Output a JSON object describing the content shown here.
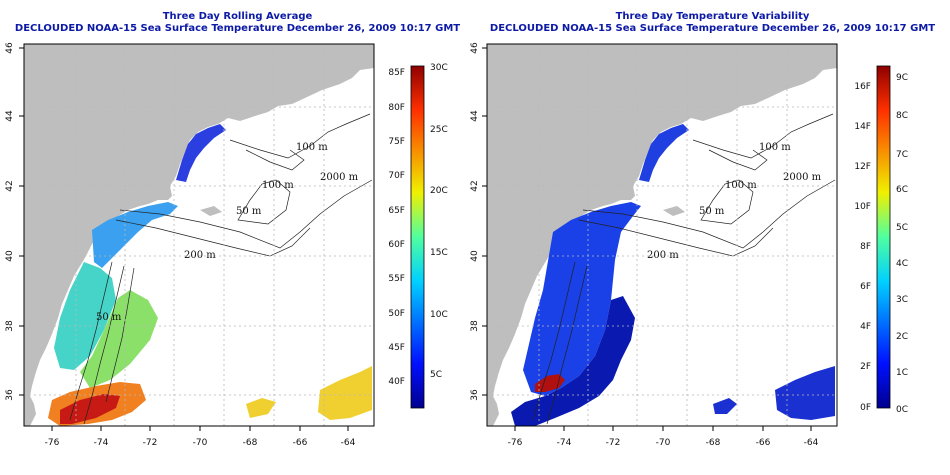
{
  "panels": [
    {
      "title": "Three Day Rolling Average",
      "subtitle": "DECLOUDED NOAA-15 Sea Surface Temperature December 26, 2009 10:17 GMT",
      "x_ticks": [
        "-76",
        "-74",
        "-72",
        "-70",
        "-68",
        "-66",
        "-64"
      ],
      "y_ticks": [
        "36",
        "38",
        "40",
        "42",
        "44",
        "46"
      ],
      "colorbar_left": [
        "85F",
        "80F",
        "75F",
        "70F",
        "65F",
        "60F",
        "55F",
        "50F",
        "45F",
        "40F"
      ],
      "colorbar_right": [
        "30C",
        "25C",
        "20C",
        "15C",
        "10C",
        "5C"
      ],
      "contour_labels": [
        "100 m",
        "100 m",
        "2000 m",
        "50 m",
        "200 m",
        "50 m"
      ]
    },
    {
      "title": "Three Day Temperature Variability",
      "subtitle": "DECLOUDED NOAA-15 Sea Surface Temperature December 26, 2009 10:17 GMT",
      "x_ticks": [
        "-76",
        "-74",
        "-72",
        "-70",
        "-68",
        "-66",
        "-64"
      ],
      "y_ticks": [
        "36",
        "38",
        "40",
        "42",
        "44",
        "46"
      ],
      "colorbar_left": [
        "16F",
        "14F",
        "12F",
        "10F",
        "8F",
        "6F",
        "4F",
        "2F",
        "0F"
      ],
      "colorbar_right": [
        "9C",
        "8C",
        "7C",
        "6C",
        "5C",
        "4C",
        "3C",
        "2C",
        "1C",
        "0C"
      ],
      "contour_labels": [
        "100 m",
        "100 m",
        "2000 m",
        "50 m",
        "200 m"
      ]
    }
  ],
  "colors": {
    "title": "#0c1aa6",
    "land": "#bebebe",
    "ocean": "#ffffff",
    "grid": "#b8b8b8"
  }
}
